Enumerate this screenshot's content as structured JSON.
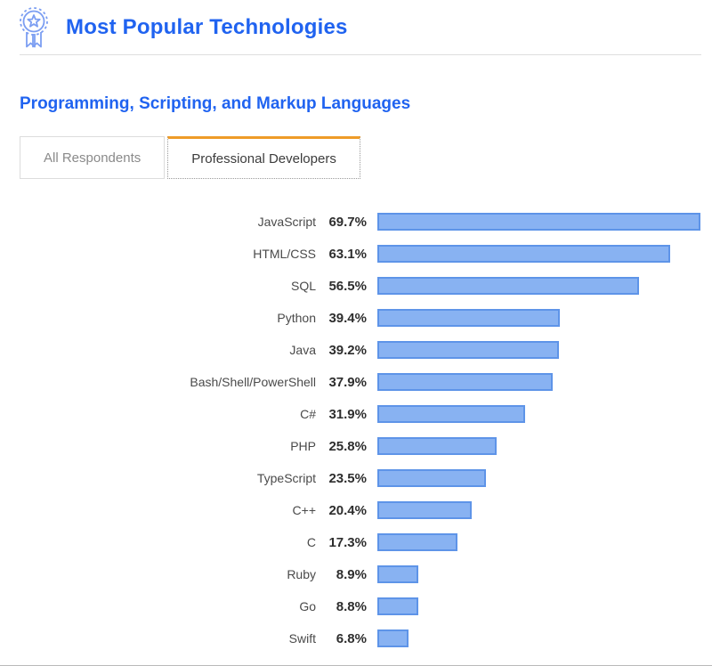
{
  "header": {
    "title": "Most Popular Technologies",
    "icon": "award-ribbon-icon"
  },
  "section": {
    "title": "Programming, Scripting, and Markup Languages"
  },
  "tabs": [
    {
      "label": "All Respondents",
      "active": false
    },
    {
      "label": "Professional Developers",
      "active": true
    }
  ],
  "colors": {
    "accent_blue": "#2063f0",
    "icon_blue": "#7c9ef2",
    "bar_fill": "#88b2f2",
    "bar_border": "#5e94e8",
    "active_tab_top": "#ef9b28",
    "inactive_tab_border": "#dcdcdc",
    "label_text": "#4a4a4a",
    "value_text": "#2e2e2e"
  },
  "chart_data": {
    "type": "bar",
    "orientation": "horizontal",
    "title": "Programming, Scripting, and Markup Languages (Professional Developers)",
    "categories": [
      "JavaScript",
      "HTML/CSS",
      "SQL",
      "Python",
      "Java",
      "Bash/Shell/PowerShell",
      "C#",
      "PHP",
      "TypeScript",
      "C++",
      "C",
      "Ruby",
      "Go",
      "Swift"
    ],
    "values": [
      69.7,
      63.1,
      56.5,
      39.4,
      39.2,
      37.9,
      31.9,
      25.8,
      23.5,
      20.4,
      17.3,
      8.9,
      8.8,
      6.8
    ],
    "value_suffix": "%",
    "xlabel": "",
    "ylabel": "",
    "xlim": [
      0,
      100
    ],
    "grid": false,
    "legend": false,
    "value_labels_position": "left-of-bar"
  }
}
